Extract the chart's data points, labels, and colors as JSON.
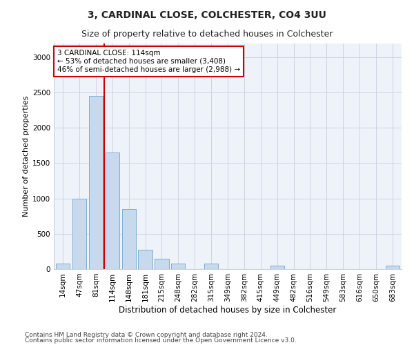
{
  "title": "3, CARDINAL CLOSE, COLCHESTER, CO4 3UU",
  "subtitle": "Size of property relative to detached houses in Colchester",
  "xlabel": "Distribution of detached houses by size in Colchester",
  "ylabel": "Number of detached properties",
  "bar_labels": [
    "14sqm",
    "47sqm",
    "81sqm",
    "114sqm",
    "148sqm",
    "181sqm",
    "215sqm",
    "248sqm",
    "282sqm",
    "315sqm",
    "349sqm",
    "382sqm",
    "415sqm",
    "449sqm",
    "482sqm",
    "516sqm",
    "549sqm",
    "583sqm",
    "616sqm",
    "650sqm",
    "683sqm"
  ],
  "bar_values": [
    75,
    1000,
    2450,
    1650,
    850,
    270,
    150,
    75,
    0,
    75,
    0,
    0,
    0,
    45,
    0,
    0,
    0,
    0,
    0,
    0,
    45
  ],
  "bar_color": "#c8d9ed",
  "bar_edge_color": "#7aafd4",
  "vline_x": 2.5,
  "vline_color": "#cc0000",
  "annotation_line1": "3 CARDINAL CLOSE: 114sqm",
  "annotation_line2": "← 53% of detached houses are smaller (3,408)",
  "annotation_line3": "46% of semi-detached houses are larger (2,988) →",
  "annotation_box_color": "#cc0000",
  "ylim": [
    0,
    3200
  ],
  "yticks": [
    0,
    500,
    1000,
    1500,
    2000,
    2500,
    3000
  ],
  "footnote1": "Contains HM Land Registry data © Crown copyright and database right 2024.",
  "footnote2": "Contains public sector information licensed under the Open Government Licence v3.0.",
  "bg_color": "#eef2f9",
  "plot_bg_color": "#ffffff",
  "title_fontsize": 10,
  "subtitle_fontsize": 9,
  "annotation_fontsize": 7.5,
  "ylabel_fontsize": 8,
  "xlabel_fontsize": 8.5,
  "tick_fontsize": 7.5,
  "footnote_fontsize": 6.5
}
